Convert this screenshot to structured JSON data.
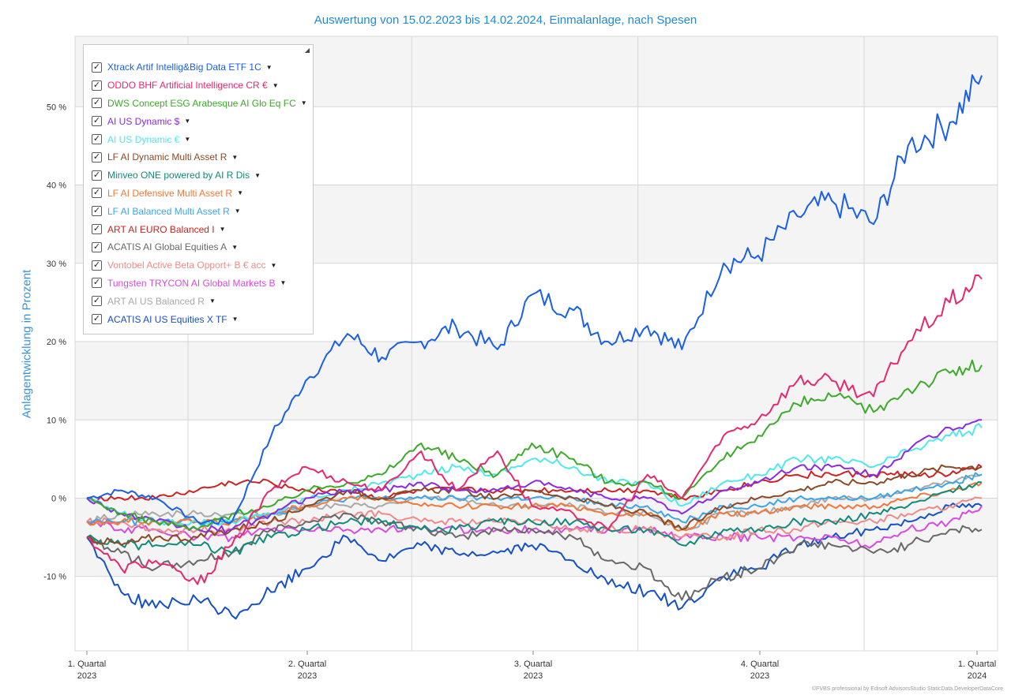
{
  "chart_data": {
    "type": "line",
    "title": "Auswertung von 15.02.2023 bis 14.02.2024, Einmalanlage, nach Spesen",
    "xlabel": "",
    "ylabel": "Anlagentwicklung  in Prozent",
    "x_ticks": [
      {
        "label": "1. Quartal",
        "year": "2023"
      },
      {
        "label": "2. Quartal",
        "year": "2023"
      },
      {
        "label": "3. Quartal",
        "year": "2023"
      },
      {
        "label": "4. Quartal",
        "year": "2023"
      },
      {
        "label": "1. Quartal",
        "year": "2024"
      }
    ],
    "y_ticks": [
      -10,
      0,
      10,
      20,
      30,
      40,
      50
    ],
    "y_tick_labels": [
      "-10 %",
      "0 %",
      "10 %",
      "20 %",
      "30 %",
      "40 %",
      "50 %"
    ],
    "ylim": [
      -19.5,
      59
    ],
    "x_range": [
      "2023-02-15",
      "2024-02-14"
    ],
    "legend_position": "top-left",
    "grid": true,
    "x": [
      "2023-02-15",
      "2023-03-01",
      "2023-03-15",
      "2023-04-01",
      "2023-04-15",
      "2023-05-01",
      "2023-05-15",
      "2023-06-01",
      "2023-06-15",
      "2023-07-01",
      "2023-07-15",
      "2023-08-01",
      "2023-08-15",
      "2023-09-01",
      "2023-09-15",
      "2023-10-01",
      "2023-10-15",
      "2023-11-01",
      "2023-11-15",
      "2023-12-01",
      "2023-12-15",
      "2024-01-01",
      "2024-01-15",
      "2024-02-01",
      "2024-02-14"
    ],
    "series": [
      {
        "name": "Xtrack Artif Intellig&Big Data ETF 1C",
        "color": "#1a5fe8",
        "values": [
          0,
          1,
          0,
          -3,
          -3,
          8,
          15,
          21,
          18,
          20,
          22,
          19,
          26,
          24,
          20,
          22,
          19,
          30,
          31,
          36,
          38,
          35,
          45,
          48,
          54
        ]
      },
      {
        "name": "ODDO BHF Artificial Intelligence CR €",
        "color": "#e8286e",
        "values": [
          -5,
          -9,
          -8,
          -11,
          -6,
          1,
          4,
          2,
          1,
          6,
          1,
          6,
          -1,
          -2,
          -4,
          3,
          0,
          8,
          10,
          15,
          15,
          13,
          20,
          25,
          28
        ]
      },
      {
        "name": "DWS Concept ESG Arabesque AI Glo Eq FC",
        "color": "#3caa2a",
        "values": [
          0,
          -2,
          -3,
          -4,
          -2,
          -1,
          1,
          2,
          3,
          7,
          5,
          3,
          7,
          5,
          2,
          2,
          0,
          5,
          8,
          12,
          13,
          11,
          14,
          16,
          17
        ]
      },
      {
        "name": "AI US Dynamic $",
        "color": "#8a2be2",
        "values": [
          0,
          -2,
          -3,
          -4,
          -4,
          -2,
          0,
          1,
          1,
          2,
          1,
          1,
          2,
          1,
          0,
          0,
          -2,
          1,
          2,
          4,
          4,
          3,
          6,
          9,
          10
        ]
      },
      {
        "name": "AI US Dynamic €",
        "color": "#4fe8ec",
        "values": [
          0,
          -2,
          -3,
          -3,
          -3,
          -2,
          0,
          1,
          2,
          3,
          4,
          3,
          5,
          4,
          2,
          2,
          -1,
          2,
          3,
          5,
          5,
          4,
          6,
          8,
          9
        ]
      },
      {
        "name": "LF AI Dynamic Multi Asset R",
        "color": "#8b4a24",
        "values": [
          -5,
          -6,
          -5,
          -5,
          -4,
          -3,
          -1,
          1,
          0,
          1,
          1,
          0,
          1,
          0,
          -1,
          -2,
          -4,
          -1,
          0,
          1,
          2,
          2,
          3,
          4,
          4
        ]
      },
      {
        "name": "Minveo ONE powered by AI R Dis",
        "color": "#128a7a",
        "values": [
          -5,
          -6,
          -6,
          -6,
          -7,
          -5,
          -4,
          -3,
          -3,
          -4,
          -4,
          -3,
          -3,
          -3,
          -4,
          -4,
          -6,
          -4,
          -4,
          -3,
          -3,
          -2,
          -1,
          1,
          2
        ]
      },
      {
        "name": "LF AI Defensive Multi Asset R",
        "color": "#f07838",
        "values": [
          -3,
          -3,
          -3,
          -3,
          -3,
          -2,
          -1,
          0,
          0,
          -1,
          -1,
          -1,
          -1,
          -1,
          -2,
          -2,
          -4,
          -2,
          -2,
          -1,
          -1,
          -1,
          0,
          1,
          2
        ]
      },
      {
        "name": "LF AI Balanced Multi Asset R",
        "color": "#3da4e8",
        "values": [
          -3,
          -3,
          -3,
          -3,
          -3,
          -2,
          -1,
          0,
          0,
          0,
          0,
          0,
          0,
          0,
          -1,
          -1,
          -3,
          -1,
          -1,
          0,
          0,
          0,
          1,
          2,
          3
        ]
      },
      {
        "name": "ART AI EURO Balanced I",
        "color": "#cc2222",
        "values": [
          0,
          0,
          0,
          1,
          2,
          2,
          1,
          1,
          0,
          1,
          1,
          1,
          1,
          1,
          1,
          1,
          0,
          1,
          2,
          3,
          3,
          3,
          3,
          3,
          4
        ]
      },
      {
        "name": "ACATIS AI Global Equities A",
        "color": "#686868",
        "values": [
          -5,
          -7,
          -9,
          -8,
          -7,
          -4,
          -3,
          -2,
          -3,
          -4,
          -5,
          -4,
          -4,
          -5,
          -8,
          -9,
          -13,
          -10,
          -9,
          -6,
          -6,
          -7,
          -6,
          -4,
          -4
        ]
      },
      {
        "name": "Vontobel Active Beta Opport+ B € acc",
        "color": "#f08a8a",
        "values": [
          -3,
          -3,
          -4,
          -4,
          -4,
          -3,
          -3,
          -2,
          -2,
          -3,
          -3,
          -3,
          -3,
          -4,
          -4,
          -4,
          -5,
          -5,
          -4,
          -4,
          -3,
          -3,
          -2,
          -1,
          0
        ]
      },
      {
        "name": "Tungsten TRYCON AI Global Markets B",
        "color": "#d84ae0",
        "values": [
          -3,
          -4,
          -4,
          -5,
          -5,
          -4,
          -4,
          -4,
          -4,
          -4,
          -4,
          -4,
          -4,
          -4,
          -4,
          -4,
          -5,
          -5,
          -5,
          -5,
          -5,
          -6,
          -4,
          -3,
          -1
        ]
      },
      {
        "name": "ART AI US Balanced R",
        "color": "#a8a8a8",
        "values": [
          -3,
          -2,
          -2,
          -2,
          -2,
          -2,
          -1,
          -1,
          -1,
          0,
          0,
          -1,
          -1,
          -1,
          -2,
          -2,
          -4,
          -2,
          -2,
          -1,
          0,
          0,
          1,
          2,
          3
        ]
      },
      {
        "name": "ACATIS AI US Equities X TF",
        "color": "#1450c8",
        "values": [
          -5,
          -12,
          -14,
          -13,
          -15,
          -12,
          -9,
          -5,
          -8,
          -6,
          -7,
          -7,
          -6,
          -8,
          -11,
          -12,
          -14,
          -10,
          -9,
          -6,
          -5,
          -4,
          -3,
          -1,
          -1
        ]
      }
    ]
  },
  "legend_expand_glyph": "◢",
  "footer": "©FVBS professional by Edisoft AdvisorsStudio StaticData.DeveloperDataCore"
}
